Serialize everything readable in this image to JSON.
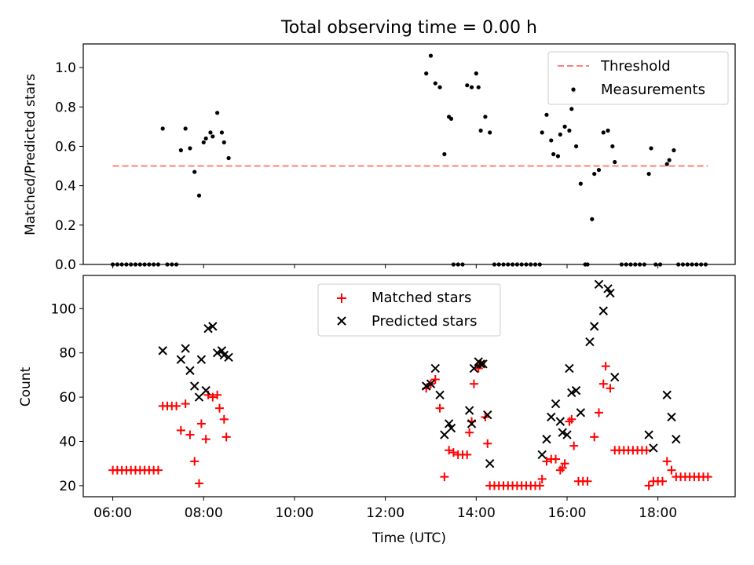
{
  "chart_data": [
    {
      "type": "scatter",
      "title": "Total observing time = 0.00 h",
      "xlabel": "",
      "ylabel": "Matched/Predicted stars",
      "x_ticks": [
        "06:00",
        "08:00",
        "10:00",
        "12:00",
        "14:00",
        "16:00",
        "18:00"
      ],
      "x_tick_hours": [
        6,
        8,
        10,
        12,
        14,
        16,
        18
      ],
      "xlim_hours": [
        5.35,
        19.7
      ],
      "ylim": [
        0,
        1.12
      ],
      "y_ticks": [
        0.0,
        0.2,
        0.4,
        0.6,
        0.8,
        1.0
      ],
      "y_tick_labels": [
        "0.0",
        "0.2",
        "0.4",
        "0.6",
        "0.8",
        "1.0"
      ],
      "grid": false,
      "legend": "top-right",
      "threshold": {
        "name": "Threshold",
        "value": 0.5,
        "x_start_hours": 6.0,
        "x_end_hours": 19.1,
        "color": "#ff7f7f"
      },
      "series": [
        {
          "name": "Measurements",
          "color": "#000000",
          "points": [
            [
              6.0,
              0
            ],
            [
              6.1,
              0
            ],
            [
              6.2,
              0
            ],
            [
              6.3,
              0
            ],
            [
              6.4,
              0
            ],
            [
              6.5,
              0
            ],
            [
              6.6,
              0
            ],
            [
              6.7,
              0
            ],
            [
              6.8,
              0
            ],
            [
              6.9,
              0
            ],
            [
              7.0,
              0
            ],
            [
              7.1,
              0.69
            ],
            [
              7.2,
              0
            ],
            [
              7.3,
              0
            ],
            [
              7.4,
              0
            ],
            [
              7.5,
              0.58
            ],
            [
              7.6,
              0.69
            ],
            [
              7.7,
              0.59
            ],
            [
              7.8,
              0.47
            ],
            [
              7.9,
              0.35
            ],
            [
              8.0,
              0.62
            ],
            [
              8.05,
              0.64
            ],
            [
              8.15,
              0.67
            ],
            [
              8.2,
              0.65
            ],
            [
              8.3,
              0.77
            ],
            [
              8.4,
              0.67
            ],
            [
              8.45,
              0.62
            ],
            [
              8.55,
              0.54
            ],
            [
              12.9,
              0.97
            ],
            [
              13.0,
              1.06
            ],
            [
              13.1,
              0.92
            ],
            [
              13.2,
              0.9
            ],
            [
              13.3,
              0.56
            ],
            [
              13.4,
              0.75
            ],
            [
              13.45,
              0.74
            ],
            [
              13.5,
              0
            ],
            [
              13.6,
              0
            ],
            [
              13.7,
              0
            ],
            [
              13.8,
              0.91
            ],
            [
              13.9,
              0.9
            ],
            [
              14.0,
              0.97
            ],
            [
              14.05,
              0.9
            ],
            [
              14.1,
              0.68
            ],
            [
              14.2,
              0.75
            ],
            [
              14.3,
              0.67
            ],
            [
              14.4,
              0
            ],
            [
              14.5,
              0
            ],
            [
              14.6,
              0
            ],
            [
              14.7,
              0
            ],
            [
              14.8,
              0
            ],
            [
              14.9,
              0
            ],
            [
              15.0,
              0
            ],
            [
              15.1,
              0
            ],
            [
              15.2,
              0
            ],
            [
              15.3,
              0
            ],
            [
              15.4,
              0
            ],
            [
              15.45,
              0.67
            ],
            [
              15.55,
              0.76
            ],
            [
              15.65,
              0.63
            ],
            [
              15.7,
              0.56
            ],
            [
              15.8,
              0.55
            ],
            [
              15.85,
              0.66
            ],
            [
              15.95,
              0.7
            ],
            [
              16.05,
              0.68
            ],
            [
              16.1,
              0.79
            ],
            [
              16.15,
              0.88
            ],
            [
              16.2,
              0.6
            ],
            [
              16.3,
              0.41
            ],
            [
              16.4,
              0
            ],
            [
              16.45,
              0
            ],
            [
              16.55,
              0.23
            ],
            [
              16.6,
              0.46
            ],
            [
              16.7,
              0.48
            ],
            [
              16.8,
              0.67
            ],
            [
              16.9,
              0.68
            ],
            [
              17.0,
              0.6
            ],
            [
              17.05,
              0.52
            ],
            [
              17.2,
              0
            ],
            [
              17.3,
              0
            ],
            [
              17.4,
              0
            ],
            [
              17.5,
              0
            ],
            [
              17.6,
              0
            ],
            [
              17.7,
              0
            ],
            [
              17.8,
              0.46
            ],
            [
              17.85,
              0.59
            ],
            [
              17.95,
              0
            ],
            [
              18.05,
              0
            ],
            [
              18.2,
              0.51
            ],
            [
              18.25,
              0.53
            ],
            [
              18.35,
              0.58
            ],
            [
              18.45,
              0
            ],
            [
              18.55,
              0
            ],
            [
              18.65,
              0
            ],
            [
              18.75,
              0
            ],
            [
              18.85,
              0
            ],
            [
              18.95,
              0
            ],
            [
              19.05,
              0
            ]
          ]
        }
      ]
    },
    {
      "type": "scatter",
      "title": "",
      "xlabel": "Time (UTC)",
      "ylabel": "Count",
      "x_ticks": [
        "06:00",
        "08:00",
        "10:00",
        "12:00",
        "14:00",
        "16:00",
        "18:00"
      ],
      "x_tick_hours": [
        6,
        8,
        10,
        12,
        14,
        16,
        18
      ],
      "xlim_hours": [
        5.35,
        19.7
      ],
      "ylim": [
        15,
        115
      ],
      "y_ticks": [
        20,
        40,
        60,
        80,
        100
      ],
      "y_tick_labels": [
        "20",
        "40",
        "60",
        "80",
        "100"
      ],
      "grid": false,
      "legend": "upper-center",
      "series": [
        {
          "name": "Matched stars",
          "marker": "plus",
          "color": "#ff0000",
          "points": [
            [
              6.0,
              27
            ],
            [
              6.1,
              27
            ],
            [
              6.2,
              27
            ],
            [
              6.3,
              27
            ],
            [
              6.4,
              27
            ],
            [
              6.5,
              27
            ],
            [
              6.6,
              27
            ],
            [
              6.7,
              27
            ],
            [
              6.8,
              27
            ],
            [
              6.9,
              27
            ],
            [
              7.0,
              27
            ],
            [
              7.1,
              56
            ],
            [
              7.2,
              56
            ],
            [
              7.3,
              56
            ],
            [
              7.4,
              56
            ],
            [
              7.5,
              45
            ],
            [
              7.6,
              57
            ],
            [
              7.7,
              43
            ],
            [
              7.8,
              31
            ],
            [
              7.9,
              21
            ],
            [
              7.95,
              48
            ],
            [
              8.05,
              41
            ],
            [
              8.1,
              61
            ],
            [
              8.2,
              60
            ],
            [
              8.3,
              61
            ],
            [
              8.35,
              55
            ],
            [
              8.45,
              50
            ],
            [
              8.5,
              42
            ],
            [
              12.9,
              64
            ],
            [
              13.0,
              66
            ],
            [
              13.1,
              68
            ],
            [
              13.2,
              55
            ],
            [
              13.3,
              24
            ],
            [
              13.4,
              36
            ],
            [
              13.5,
              35
            ],
            [
              13.6,
              34
            ],
            [
              13.7,
              34
            ],
            [
              13.8,
              34
            ],
            [
              13.85,
              44
            ],
            [
              13.9,
              49
            ],
            [
              13.95,
              66
            ],
            [
              14.05,
              73
            ],
            [
              14.1,
              75
            ],
            [
              14.2,
              51
            ],
            [
              14.25,
              39
            ],
            [
              14.3,
              20
            ],
            [
              14.4,
              20
            ],
            [
              14.5,
              20
            ],
            [
              14.6,
              20
            ],
            [
              14.7,
              20
            ],
            [
              14.8,
              20
            ],
            [
              14.9,
              20
            ],
            [
              15.0,
              20
            ],
            [
              15.1,
              20
            ],
            [
              15.2,
              20
            ],
            [
              15.3,
              20
            ],
            [
              15.4,
              20
            ],
            [
              15.45,
              23
            ],
            [
              15.55,
              31
            ],
            [
              15.65,
              32
            ],
            [
              15.75,
              32
            ],
            [
              15.85,
              27
            ],
            [
              15.9,
              28
            ],
            [
              15.95,
              30
            ],
            [
              16.05,
              49
            ],
            [
              16.1,
              50
            ],
            [
              16.15,
              38
            ],
            [
              16.25,
              22
            ],
            [
              16.35,
              22
            ],
            [
              16.45,
              22
            ],
            [
              16.6,
              42
            ],
            [
              16.7,
              53
            ],
            [
              16.8,
              66
            ],
            [
              16.85,
              74
            ],
            [
              16.95,
              64
            ],
            [
              17.05,
              36
            ],
            [
              17.15,
              36
            ],
            [
              17.25,
              36
            ],
            [
              17.35,
              36
            ],
            [
              17.45,
              36
            ],
            [
              17.55,
              36
            ],
            [
              17.65,
              36
            ],
            [
              17.75,
              36
            ],
            [
              17.8,
              20
            ],
            [
              17.9,
              22
            ],
            [
              18.0,
              22
            ],
            [
              18.1,
              22
            ],
            [
              18.2,
              31
            ],
            [
              18.3,
              27
            ],
            [
              18.4,
              24
            ],
            [
              18.5,
              24
            ],
            [
              18.6,
              24
            ],
            [
              18.7,
              24
            ],
            [
              18.8,
              24
            ],
            [
              18.9,
              24
            ],
            [
              19.0,
              24
            ],
            [
              19.1,
              24
            ]
          ]
        },
        {
          "name": "Predicted stars",
          "marker": "x",
          "color": "#000000",
          "points": [
            [
              7.1,
              81
            ],
            [
              7.5,
              77
            ],
            [
              7.6,
              82
            ],
            [
              7.7,
              72
            ],
            [
              7.8,
              65
            ],
            [
              7.9,
              60
            ],
            [
              7.95,
              77
            ],
            [
              8.05,
              63
            ],
            [
              8.1,
              91
            ],
            [
              8.2,
              92
            ],
            [
              8.3,
              80
            ],
            [
              8.4,
              81
            ],
            [
              8.45,
              79
            ],
            [
              8.55,
              78
            ],
            [
              12.9,
              65
            ],
            [
              13.0,
              66
            ],
            [
              13.1,
              73
            ],
            [
              13.2,
              61
            ],
            [
              13.3,
              43
            ],
            [
              13.4,
              48
            ],
            [
              13.45,
              46
            ],
            [
              13.85,
              54
            ],
            [
              13.9,
              48
            ],
            [
              13.95,
              73
            ],
            [
              14.05,
              76
            ],
            [
              14.1,
              75
            ],
            [
              14.15,
              75
            ],
            [
              14.25,
              52
            ],
            [
              14.3,
              30
            ],
            [
              15.45,
              34
            ],
            [
              15.55,
              41
            ],
            [
              15.65,
              51
            ],
            [
              15.75,
              57
            ],
            [
              15.85,
              49
            ],
            [
              15.9,
              44
            ],
            [
              16.0,
              43
            ],
            [
              16.05,
              73
            ],
            [
              16.1,
              62
            ],
            [
              16.2,
              63
            ],
            [
              16.3,
              53
            ],
            [
              16.5,
              85
            ],
            [
              16.6,
              92
            ],
            [
              16.7,
              111
            ],
            [
              16.8,
              99
            ],
            [
              16.9,
              109
            ],
            [
              16.95,
              107
            ],
            [
              17.05,
              69
            ],
            [
              17.8,
              43
            ],
            [
              17.9,
              37
            ],
            [
              18.2,
              61
            ],
            [
              18.3,
              51
            ],
            [
              18.4,
              41
            ]
          ]
        }
      ]
    }
  ]
}
